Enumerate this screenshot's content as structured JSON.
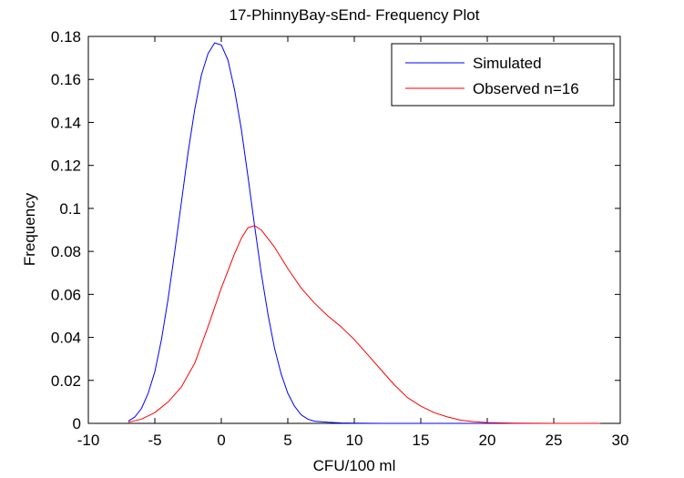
{
  "chart_data": {
    "type": "line",
    "title": "17-PhinnyBay-sEnd- Frequency Plot",
    "xlabel": "CFU/100 ml",
    "ylabel": "Frequency",
    "xlim": [
      -10,
      30
    ],
    "ylim": [
      0,
      0.18
    ],
    "xticks": [
      -10,
      -5,
      0,
      5,
      10,
      15,
      20,
      25,
      30
    ],
    "yticks": [
      0,
      0.02,
      0.04,
      0.06,
      0.08,
      0.1,
      0.12,
      0.14,
      0.16,
      0.18
    ],
    "xtick_labels": [
      "-10",
      "-5",
      "0",
      "5",
      "10",
      "15",
      "20",
      "25",
      "30"
    ],
    "ytick_labels": [
      "0",
      "0.02",
      "0.04",
      "0.06",
      "0.08",
      "0.1",
      "0.12",
      "0.14",
      "0.16",
      "0.18"
    ],
    "grid": false,
    "legend_position": "top-right",
    "series": [
      {
        "name": "Simulated",
        "color": "#0000ff",
        "x": [
          -7,
          -6.5,
          -6,
          -5.5,
          -5,
          -4.5,
          -4,
          -3.5,
          -3,
          -2.5,
          -2,
          -1.5,
          -1,
          -0.5,
          0,
          0.5,
          1,
          1.5,
          2,
          2.5,
          3,
          3.5,
          4,
          4.5,
          5,
          5.5,
          6,
          6.5,
          7,
          8,
          9,
          10,
          12,
          15,
          20,
          25,
          28.5
        ],
        "y": [
          0.001,
          0.003,
          0.007,
          0.014,
          0.024,
          0.039,
          0.058,
          0.08,
          0.103,
          0.126,
          0.146,
          0.162,
          0.172,
          0.177,
          0.176,
          0.169,
          0.155,
          0.137,
          0.115,
          0.092,
          0.07,
          0.051,
          0.035,
          0.023,
          0.014,
          0.008,
          0.004,
          0.002,
          0.001,
          0.0005,
          0.0002,
          0.0001,
          0,
          0,
          0,
          0,
          0
        ]
      },
      {
        "name": "Observed n=16",
        "color": "#ff0000",
        "x": [
          -7,
          -6,
          -5,
          -4,
          -3,
          -2,
          -1,
          0,
          1,
          1.5,
          2,
          2.5,
          3,
          4,
          5,
          6,
          7,
          8,
          9,
          10,
          11,
          12,
          13,
          14,
          15,
          16,
          17,
          18,
          19,
          20,
          22,
          25,
          28.5
        ],
        "y": [
          0.0005,
          0.002,
          0.005,
          0.01,
          0.017,
          0.028,
          0.045,
          0.063,
          0.079,
          0.086,
          0.091,
          0.092,
          0.09,
          0.082,
          0.072,
          0.063,
          0.056,
          0.05,
          0.045,
          0.039,
          0.032,
          0.025,
          0.018,
          0.012,
          0.008,
          0.005,
          0.003,
          0.0015,
          0.0008,
          0.0004,
          0.0001,
          0,
          0
        ]
      }
    ]
  }
}
